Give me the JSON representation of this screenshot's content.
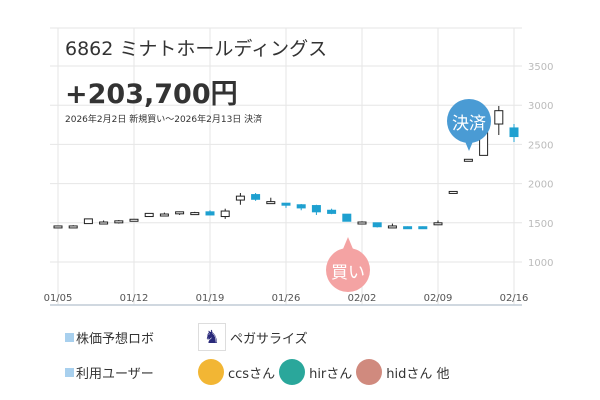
{
  "header": {
    "title": "6862 ミナトホールディングス",
    "profit": "+203,700円",
    "period": "2026年2月2日 新規買い～2026年2月13日 決済"
  },
  "markers": {
    "buy": "買い",
    "sell": "決済"
  },
  "chart_data": {
    "type": "candlestick",
    "ylim": [
      700,
      3700
    ],
    "yticks": [
      1000,
      1500,
      2000,
      2500,
      3000,
      3500
    ],
    "xtick_labels": [
      "01/05",
      "01/12",
      "01/19",
      "01/26",
      "02/02",
      "02/09",
      "02/16"
    ],
    "xtick_index": [
      0,
      5,
      10,
      15,
      20,
      25,
      30
    ],
    "candles": [
      [
        1460,
        1460,
        1455,
        1465
      ],
      [
        1460,
        1460,
        1450,
        1470
      ],
      [
        1490,
        1550,
        1485,
        1555
      ],
      [
        1510,
        1510,
        1500,
        1530
      ],
      [
        1525,
        1525,
        1490,
        1535
      ],
      [
        1545,
        1545,
        1535,
        1550
      ],
      [
        1580,
        1620,
        1578,
        1622
      ],
      [
        1610,
        1612,
        1590,
        1630
      ],
      [
        1640,
        1640,
        1600,
        1645
      ],
      [
        1630,
        1630,
        1620,
        1640
      ],
      [
        1640,
        1600,
        1595,
        1660
      ],
      [
        1580,
        1650,
        1550,
        1680
      ],
      [
        1790,
        1840,
        1730,
        1880
      ],
      [
        1860,
        1800,
        1780,
        1880
      ],
      [
        1760,
        1770,
        1750,
        1820
      ],
      [
        1750,
        1740,
        1690,
        1750
      ],
      [
        1730,
        1690,
        1660,
        1740
      ],
      [
        1720,
        1640,
        1600,
        1730
      ],
      [
        1660,
        1620,
        1610,
        1680
      ],
      [
        1610,
        1520,
        1520,
        1610
      ],
      [
        1510,
        1510,
        1490,
        1520
      ],
      [
        1500,
        1450,
        1440,
        1500
      ],
      [
        1440,
        1460,
        1440,
        1490
      ],
      [
        1450,
        1430,
        1425,
        1455
      ],
      [
        1450,
        1430,
        1425,
        1455
      ],
      [
        1480,
        1500,
        1470,
        1530
      ],
      [
        1900,
        1900,
        1900,
        1900
      ],
      [
        2310,
        2310,
        2310,
        2310
      ],
      [
        2360,
        2650,
        2360,
        2760
      ],
      [
        2760,
        2930,
        2620,
        2990
      ],
      [
        2710,
        2600,
        2530,
        2760
      ]
    ],
    "up_color": "#ffffff",
    "down_color": "#1ea0d0"
  },
  "footer": {
    "robot_label": "株価予想ロボ",
    "robot_name": "ペガサライズ",
    "users_label": "利用ユーザー",
    "users": [
      {
        "name": "ccsさん",
        "color": "#f2b634"
      },
      {
        "name": "hirさん",
        "color": "#2aa79b"
      },
      {
        "name": "hidさん 他",
        "color": "#d08a7e"
      }
    ]
  }
}
